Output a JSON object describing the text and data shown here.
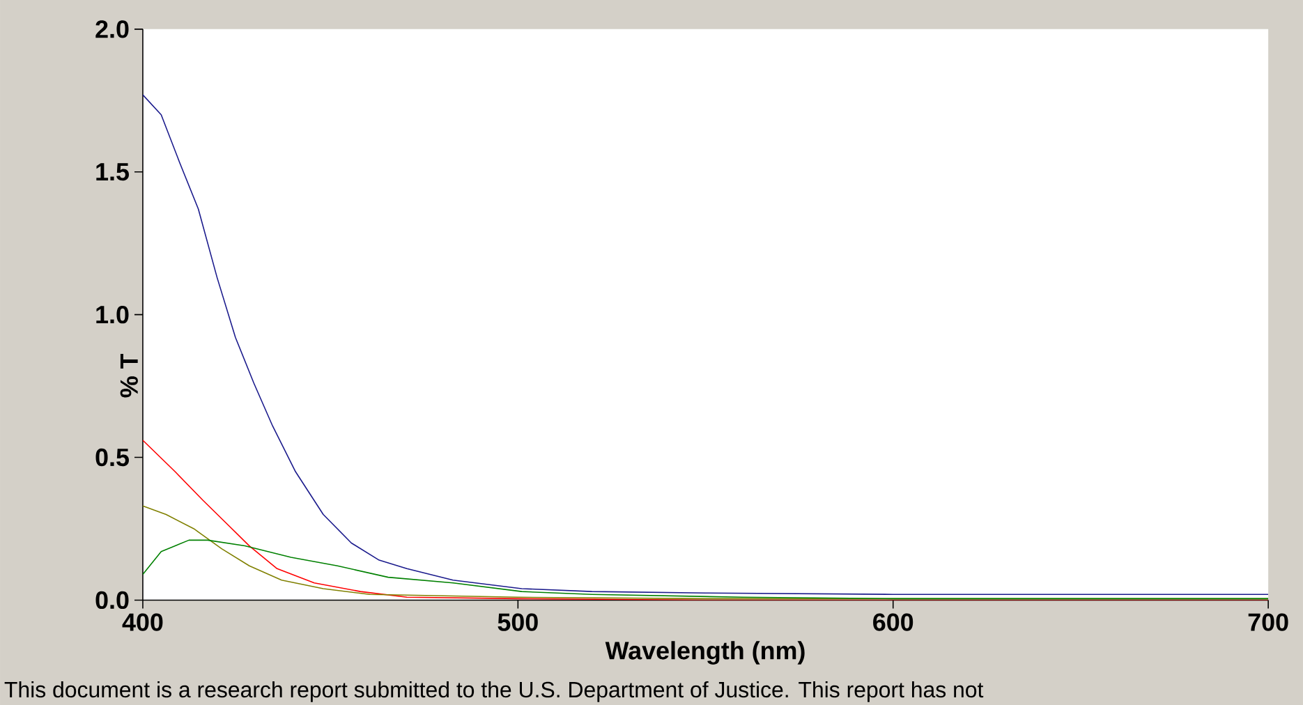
{
  "chart_data": {
    "type": "line",
    "xlabel": "Wavelength (nm)",
    "ylabel": "% T",
    "annotations": [
      "This document is a research report submitted to the U.S. Department of Justice. This report has not"
    ],
    "xlim": [
      400,
      700
    ],
    "ylim": [
      0,
      2.0
    ],
    "xticks": [
      400,
      500,
      600,
      700
    ],
    "yticks": [
      {
        "value": 0,
        "label": "0.0"
      },
      {
        "value": 0.5,
        "label": "0.5"
      },
      {
        "value": 1.0,
        "label": "1.0"
      },
      {
        "value": 1.5,
        "label": "1.5"
      },
      {
        "value": 2.0,
        "label": "2.0"
      }
    ],
    "series": [
      {
        "color": "#1a1a8c",
        "x": [
          400,
          404.9,
          409.9,
          414.8,
          419.8,
          424.7,
          429.6,
          434.6,
          440.7,
          448.1,
          455.6,
          463,
          470.4,
          482.7,
          501,
          519.7,
          550,
          600,
          650,
          700
        ],
        "values": [
          1.77,
          1.7,
          1.53,
          1.37,
          1.13,
          0.92,
          0.76,
          0.61,
          0.45,
          0.3,
          0.2,
          0.14,
          0.11,
          0.07,
          0.04,
          0.03,
          0.025,
          0.02,
          0.02,
          0.02
        ]
      },
      {
        "color": "#ff0000",
        "x": [
          400,
          408.6,
          416,
          422.2,
          428.4,
          435.8,
          445.7,
          458,
          470.4,
          500,
          550,
          600,
          700
        ],
        "values": [
          0.56,
          0.45,
          0.35,
          0.27,
          0.19,
          0.11,
          0.06,
          0.03,
          0.01,
          0.005,
          0.0,
          0.0,
          0.0
        ]
      },
      {
        "color": "#808000",
        "x": [
          400,
          406.2,
          413.6,
          421,
          428.4,
          437,
          448.1,
          460.5,
          500,
          550,
          600,
          700
        ],
        "values": [
          0.33,
          0.3,
          0.25,
          0.18,
          0.12,
          0.07,
          0.04,
          0.02,
          0.01,
          0.005,
          0.005,
          0.005
        ]
      },
      {
        "color": "#008000",
        "x": [
          400,
          404.9,
          412.3,
          417.3,
          427.2,
          439.5,
          451.9,
          465.4,
          482.7,
          501,
          519.7,
          560,
          600,
          700
        ],
        "values": [
          0.09,
          0.17,
          0.21,
          0.21,
          0.19,
          0.15,
          0.12,
          0.08,
          0.06,
          0.03,
          0.02,
          0.01,
          0.005,
          0.005
        ]
      }
    ]
  }
}
